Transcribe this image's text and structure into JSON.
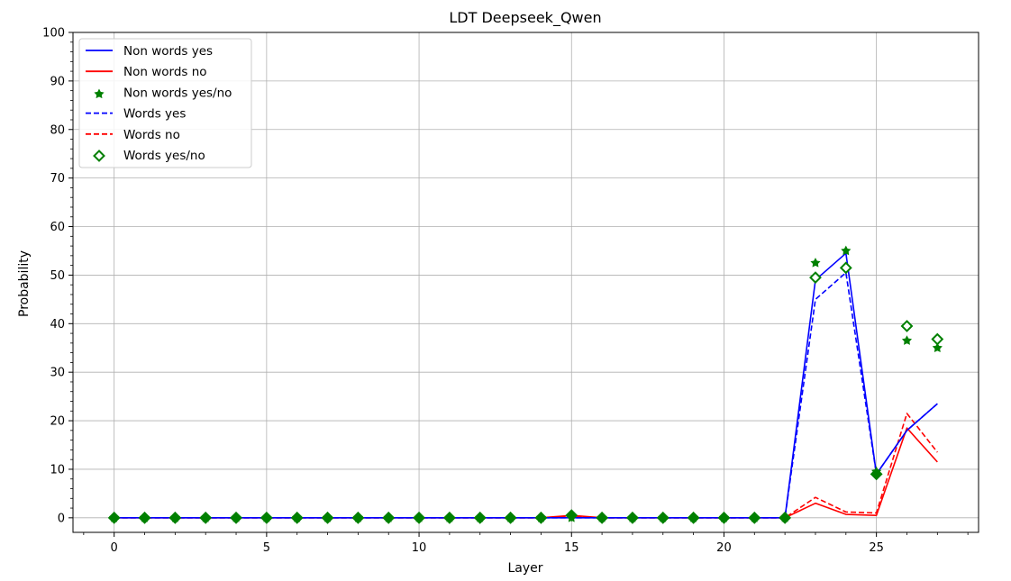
{
  "chart_data": {
    "type": "line",
    "title": "LDT Deepseek_Qwen",
    "xlabel": "Layer",
    "ylabel": "Probability",
    "xlim": [
      -1.35,
      28.35
    ],
    "ylim": [
      -3,
      100
    ],
    "xticks": [
      0,
      5,
      10,
      15,
      20,
      25
    ],
    "yticks": [
      0,
      10,
      20,
      30,
      40,
      50,
      60,
      70,
      80,
      90,
      100
    ],
    "grid": true,
    "legend_position": "top-left",
    "x": [
      0,
      1,
      2,
      3,
      4,
      5,
      6,
      7,
      8,
      9,
      10,
      11,
      12,
      13,
      14,
      15,
      16,
      17,
      18,
      19,
      20,
      21,
      22,
      23,
      24,
      25,
      26,
      27
    ],
    "series": [
      {
        "name": "Non words yes",
        "style": "solid-line",
        "color": "#0000ff",
        "values": [
          0,
          0,
          0,
          0,
          0,
          0,
          0,
          0,
          0,
          0,
          0,
          0,
          0,
          0,
          0,
          0,
          0,
          0,
          0,
          0,
          0,
          0,
          0,
          49,
          54.5,
          9,
          18,
          23.5
        ]
      },
      {
        "name": "Non words no",
        "style": "solid-line",
        "color": "#ff0000",
        "values": [
          0,
          0,
          0,
          0,
          0,
          0,
          0,
          0,
          0,
          0,
          0,
          0,
          0,
          0,
          0,
          0.5,
          0,
          0,
          0,
          0,
          0,
          0,
          0,
          3,
          0.7,
          0.5,
          18.5,
          11.5
        ]
      },
      {
        "name": "Non words yes/no",
        "style": "star-markers",
        "color": "#008000",
        "values": [
          0,
          0,
          0,
          0,
          0,
          0,
          0,
          0,
          0,
          0,
          0,
          0,
          0,
          0,
          0,
          0,
          0,
          0,
          0,
          0,
          0,
          0,
          0,
          52.5,
          55,
          9.5,
          36.5,
          35
        ]
      },
      {
        "name": "Words yes",
        "style": "dashed-line",
        "color": "#0000ff",
        "values": [
          0,
          0,
          0,
          0,
          0,
          0,
          0,
          0,
          0,
          0,
          0,
          0,
          0,
          0,
          0,
          0,
          0,
          0,
          0,
          0,
          0,
          0,
          0,
          45,
          50.5,
          9,
          18,
          23.5
        ]
      },
      {
        "name": "Words no",
        "style": "dashed-line",
        "color": "#ff0000",
        "values": [
          0,
          0,
          0,
          0,
          0,
          0,
          0,
          0,
          0,
          0,
          0,
          0,
          0,
          0,
          0,
          0.3,
          0,
          0,
          0,
          0,
          0,
          0,
          0,
          4.2,
          1.2,
          1,
          21.5,
          13.5
        ]
      },
      {
        "name": "Words yes/no",
        "style": "diamond-markers",
        "color": "#008000",
        "values": [
          0,
          0,
          0,
          0,
          0,
          0,
          0,
          0,
          0,
          0,
          0,
          0,
          0,
          0,
          0,
          0.5,
          0,
          0,
          0,
          0,
          0,
          0,
          0,
          49.5,
          51.5,
          9,
          39.5,
          36.8
        ]
      }
    ]
  }
}
